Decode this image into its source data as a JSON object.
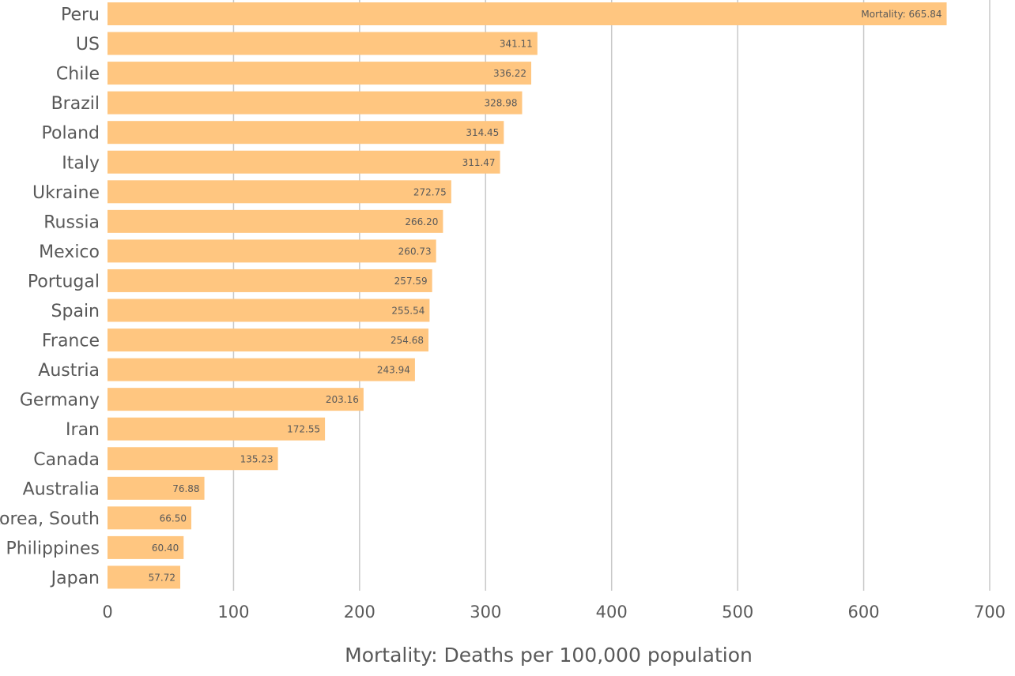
{
  "chart_data": {
    "type": "bar",
    "orientation": "horizontal",
    "categories": [
      "Peru",
      "US",
      "Chile",
      "Brazil",
      "Poland",
      "Italy",
      "Ukraine",
      "Russia",
      "Mexico",
      "Portugal",
      "Spain",
      "France",
      "Austria",
      "Germany",
      "Iran",
      "Canada",
      "Australia",
      "Korea, South",
      "Philippines",
      "Japan"
    ],
    "values": [
      665.84,
      341.11,
      336.22,
      328.98,
      314.45,
      311.47,
      272.75,
      266.2,
      260.73,
      257.59,
      255.54,
      254.68,
      243.94,
      203.16,
      172.55,
      135.23,
      76.88,
      66.5,
      60.4,
      57.72
    ],
    "data_labels": [
      "Mortality: 665.84",
      "341.11",
      "336.22",
      "328.98",
      "314.45",
      "311.47",
      "272.75",
      "266.20",
      "260.73",
      "257.59",
      "255.54",
      "254.68",
      "243.94",
      "203.16",
      "172.55",
      "135.23",
      "76.88",
      "66.50",
      "60.40",
      "57.72"
    ],
    "x_ticks": [
      "0",
      "100",
      "200",
      "300",
      "400",
      "500",
      "600",
      "700"
    ],
    "xlim": [
      0,
      700
    ],
    "xlabel": "Mortality: Deaths per 100,000 population",
    "grid": true,
    "bar_color": "#FFC680",
    "grid_color": "#C8C8C8",
    "text_color": "#595959"
  }
}
